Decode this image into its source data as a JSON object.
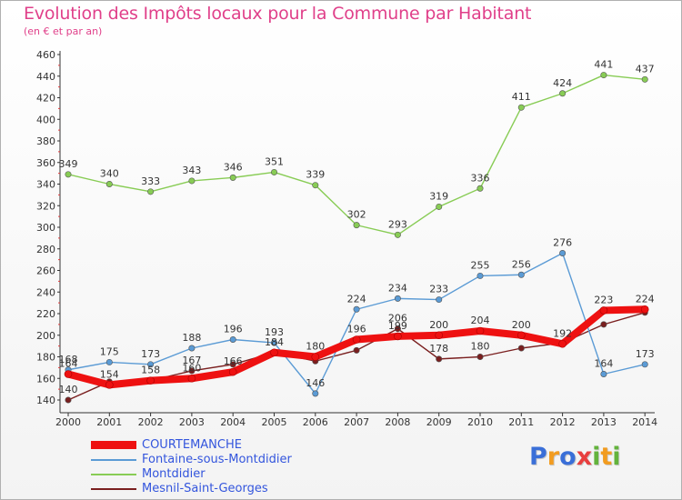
{
  "chart_data": {
    "type": "line",
    "title": "Evolution des Impôts locaux pour la Commune par Habitant",
    "subtitle": "(en € et par an)",
    "xlabel": "",
    "ylabel": "",
    "categories": [
      "2000",
      "2001",
      "2002",
      "2003",
      "2004",
      "2005",
      "2006",
      "2007",
      "2008",
      "2009",
      "2010",
      "2011",
      "2012",
      "2013",
      "2014"
    ],
    "ylim": [
      140,
      460
    ],
    "yticks": [
      140,
      160,
      180,
      200,
      220,
      240,
      260,
      280,
      300,
      320,
      340,
      360,
      380,
      400,
      420,
      440,
      460
    ],
    "grid": false,
    "legend_position": "bottom-left",
    "series": [
      {
        "name": "Mesnil-Saint-Georges",
        "color": "#7a1f1f",
        "values": [
          140,
          157,
          158,
          167,
          173,
          184,
          176,
          186,
          206,
          178,
          180,
          188,
          193,
          210,
          221
        ],
        "labels": [
          "140",
          "",
          "",
          "167",
          "",
          "",
          "",
          "",
          "206",
          "178",
          "180",
          "",
          "",
          "",
          ""
        ]
      },
      {
        "name": "Fontaine-sous-Montdidier",
        "color": "#5b9bd5",
        "values": [
          168,
          175,
          173,
          188,
          196,
          193,
          146,
          224,
          234,
          233,
          255,
          256,
          276,
          164,
          173
        ],
        "labels": [
          "168",
          "175",
          "173",
          "188",
          "196",
          "193",
          "146",
          "224",
          "234",
          "233",
          "255",
          "256",
          "276",
          "164",
          "173"
        ]
      },
      {
        "name": "Montdidier",
        "color": "#88cc55",
        "values": [
          349,
          340,
          333,
          343,
          346,
          351,
          339,
          302,
          293,
          319,
          336,
          411,
          424,
          441,
          437
        ],
        "labels": [
          "349",
          "340",
          "333",
          "343",
          "346",
          "351",
          "339",
          "302",
          "293",
          "319",
          "336",
          "411",
          "424",
          "441",
          "437"
        ]
      },
      {
        "name": "COURTEMANCHE",
        "color": "#ee1111",
        "values": [
          164,
          154,
          158,
          160,
          166,
          184,
          180,
          196,
          199,
          200,
          204,
          200,
          192,
          223,
          224
        ],
        "labels": [
          "164",
          "154",
          "158",
          "160",
          "166",
          "184",
          "180",
          "196",
          "199",
          "200",
          "204",
          "200",
          "192",
          "223",
          "224"
        ]
      }
    ]
  },
  "legend": {
    "items": [
      "COURTEMANCHE",
      "Fontaine-sous-Montdidier",
      "Montdidier",
      "Mesnil-Saint-Georges"
    ],
    "colors": [
      "#ee1111",
      "#5b9bd5",
      "#88cc55",
      "#7a1f1f"
    ]
  },
  "logo": {
    "text": "Proxiti",
    "colors": [
      "#3a6fd8",
      "#f29c20",
      "#3a6fd8",
      "#e83e3e",
      "#63b33c",
      "#f29c20",
      "#63b33c"
    ]
  }
}
